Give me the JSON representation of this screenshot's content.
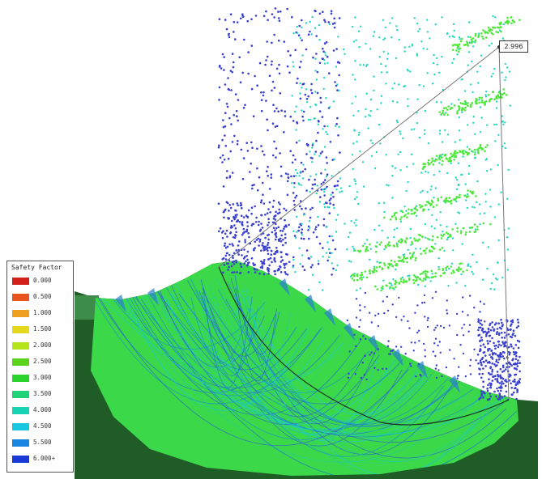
{
  "legend": {
    "title": "Safety Factor",
    "entries": [
      {
        "label": "0.000",
        "color": "#d4201a"
      },
      {
        "label": "0.500",
        "color": "#e8541e"
      },
      {
        "label": "1.000",
        "color": "#f0a020"
      },
      {
        "label": "1.500",
        "color": "#e6d81c"
      },
      {
        "label": "2.000",
        "color": "#b4e41a"
      },
      {
        "label": "2.500",
        "color": "#5cd41c"
      },
      {
        "label": "3.000",
        "color": "#2ad42c"
      },
      {
        "label": "3.500",
        "color": "#1ed476"
      },
      {
        "label": "4.000",
        "color": "#18d4b4"
      },
      {
        "label": "4.500",
        "color": "#18c8e0"
      },
      {
        "label": "5.500",
        "color": "#1886e0"
      },
      {
        "label": "6.000+",
        "color": "#1a3ad8"
      }
    ]
  },
  "critical_surface": {
    "factor_of_safety": "2.996"
  },
  "colors": {
    "ground": "#1f5c26",
    "ground_light": "#3e8c4a",
    "fan_fill": "#3bd84a",
    "grid_blue": "#3a3fd0",
    "grid_cyan": "#22d6c0",
    "grid_green": "#4ee83c"
  }
}
